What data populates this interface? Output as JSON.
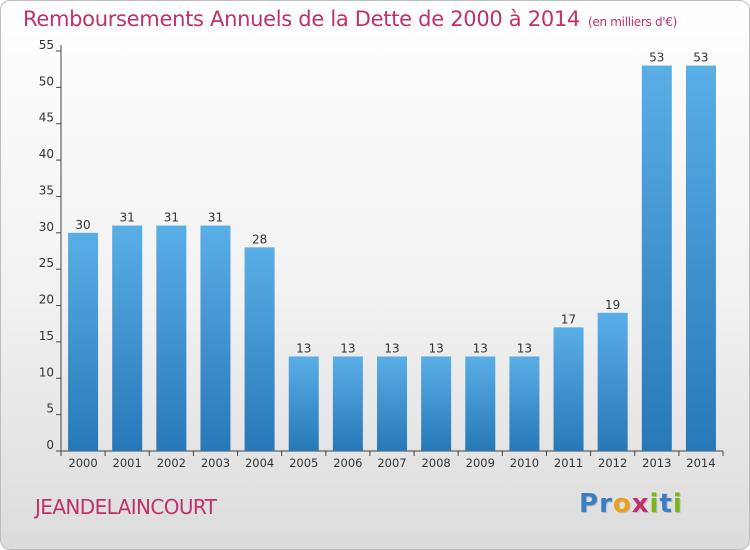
{
  "header": {
    "title": "Remboursements Annuels de la Dette de 2000 à 2014",
    "unit": "(en milliers d'€)"
  },
  "footer": {
    "commune": "JEANDELAINCOURT",
    "logo_letters": [
      "P",
      "r",
      "o",
      "x",
      "i",
      "t",
      "i"
    ],
    "logo_colors": [
      "#3a7fc4",
      "#3a7fc4",
      "#e8a11c",
      "#c0306d",
      "#7ab51d",
      "#3a7fc4",
      "#7ab51d"
    ]
  },
  "chart_data": {
    "type": "bar",
    "title": "Remboursements Annuels de la Dette de 2000 à 2014",
    "categories": [
      "2000",
      "2001",
      "2002",
      "2003",
      "2004",
      "2005",
      "2006",
      "2007",
      "2008",
      "2009",
      "2010",
      "2011",
      "2012",
      "2013",
      "2014"
    ],
    "values": [
      30,
      31,
      31,
      31,
      28,
      13,
      13,
      13,
      13,
      13,
      13,
      17,
      19,
      53,
      53
    ],
    "ylim": [
      0,
      55
    ],
    "yticks": [
      0,
      5,
      10,
      15,
      20,
      25,
      30,
      35,
      40,
      45,
      50,
      55
    ],
    "grid": false,
    "bar_color_top": "#5aaee6",
    "bar_color_bottom": "#2778b8"
  }
}
